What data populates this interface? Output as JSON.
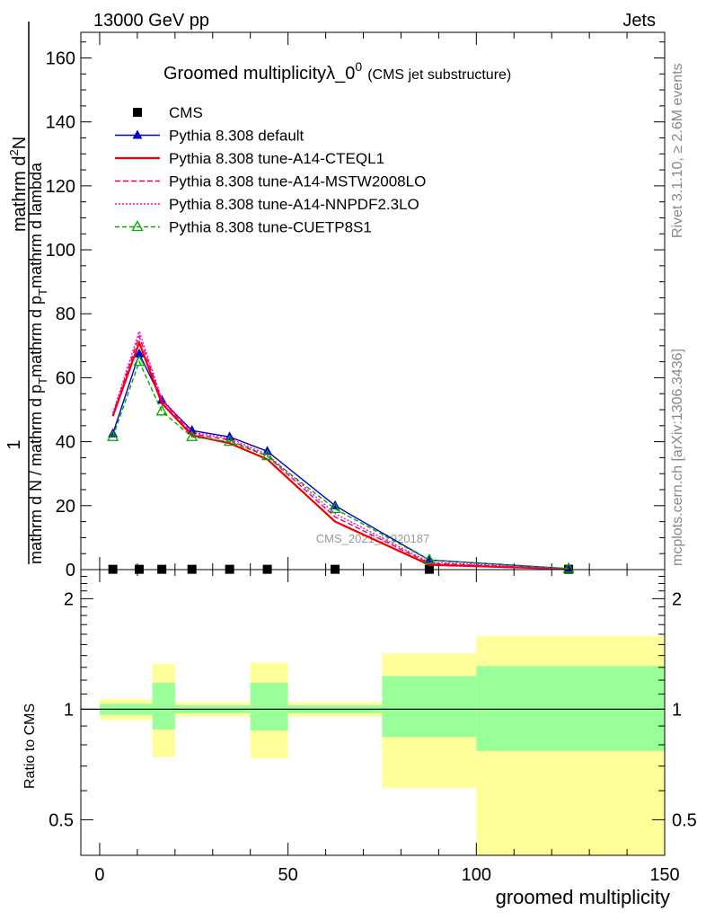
{
  "header": {
    "left": "13000 GeV pp",
    "right": "Jets"
  },
  "side": {
    "rivet": "Rivet 3.1.10, ≥ 2.6M events",
    "mcplots": "mcplots.cern.ch [arXiv:1306.3436]"
  },
  "watermark": "CMS_2021_I1920187",
  "chart_data": [
    {
      "type": "line",
      "title": "Groomed multiplicityλ_0",
      "title_sup": "0",
      "title_suffix": "(CMS jet substructure)",
      "ylabel_num": "mathrm d²N",
      "ylabel_frac_prefix": "1",
      "ylabel_den": "mathrm d N / mathrm d p_T mathrm d p_T mathrm d lambda",
      "ylabel_parts": {
        "one": "1",
        "num": "mathrm d",
        "num_sup": "2",
        "num_end": "N",
        "den_a": "mathrm d N / mathrm d p",
        "den_sub1": "T",
        "den_b": "mathrm d p",
        "den_sub2": "T",
        "den_c": "mathrm d lambda",
        "top_line": "mathrm d lambda"
      },
      "ylim": [
        0,
        168
      ],
      "xlim": [
        -5,
        150
      ],
      "yticks": [
        0,
        20,
        40,
        60,
        80,
        100,
        120,
        140,
        160
      ],
      "ytick_labels": [
        "0",
        "20",
        "40",
        "60",
        "80",
        "100",
        "120",
        "140",
        "160"
      ],
      "legend_position": "top-left",
      "series": [
        {
          "name": "CMS",
          "color": "#000000",
          "marker": "square",
          "x": [
            3.5,
            10.5,
            16.5,
            24.5,
            34.5,
            44.5,
            62.5,
            87.5,
            124.5
          ],
          "y": [
            0.1,
            0.1,
            0.1,
            0.1,
            0.1,
            0.1,
            0.1,
            0.1,
            0.1
          ]
        },
        {
          "name": "Pythia 8.308 default",
          "color": "#0000cc",
          "dash": "",
          "marker": "filled-triangle",
          "x": [
            3.5,
            10.5,
            16.5,
            24.5,
            34.5,
            44.5,
            62.5,
            87.5,
            124.5
          ],
          "y": [
            42.5,
            67.5,
            53,
            43.5,
            41.5,
            37,
            20,
            3,
            0.3
          ]
        },
        {
          "name": "Pythia 8.308 tune-A14-CTEQL1",
          "color": "#ee0000",
          "dash": "",
          "marker": "none",
          "x": [
            3.5,
            10.5,
            16.5,
            24.5,
            34.5,
            44.5,
            62.5,
            87.5,
            124.5
          ],
          "y": [
            48,
            71,
            52,
            42,
            39.5,
            34.5,
            15,
            1.5,
            0.2
          ]
        },
        {
          "name": "Pythia 8.308 tune-A14-MSTW2008LO",
          "color": "#ee0066",
          "dash": "6,3",
          "marker": "none",
          "x": [
            3.5,
            10.5,
            16.5,
            24.5,
            34.5,
            44.5,
            62.5,
            87.5,
            124.5
          ],
          "y": [
            48.5,
            73,
            53,
            42.5,
            40.5,
            35.5,
            16.5,
            2,
            0.2
          ]
        },
        {
          "name": "Pythia 8.308 tune-A14-NNPDF2.3LO",
          "color": "#ff00cc",
          "dash": "2,2",
          "marker": "none",
          "x": [
            3.5,
            10.5,
            16.5,
            24.5,
            34.5,
            44.5,
            62.5,
            87.5,
            124.5
          ],
          "y": [
            49,
            74.5,
            53.5,
            43,
            41,
            36,
            17.5,
            2.3,
            0.2
          ]
        },
        {
          "name": "Pythia 8.308 tune-CUETP8S1",
          "color": "#00aa00",
          "dash": "5,3",
          "marker": "open-triangle",
          "x": [
            3.5,
            10.5,
            16.5,
            24.5,
            34.5,
            44.5,
            62.5,
            87.5,
            124.5
          ],
          "y": [
            41.5,
            65,
            49.5,
            41.5,
            40,
            35.5,
            19,
            3,
            0.3
          ]
        }
      ]
    },
    {
      "type": "area",
      "ylabel": "Ratio to CMS",
      "xlabel": "groomed multiplicity",
      "scale": "log",
      "ylim": [
        0.4,
        2.4
      ],
      "xlim": [
        -5,
        150
      ],
      "xticks": [
        0,
        50,
        100,
        150
      ],
      "xtick_labels": [
        "0",
        "50",
        "100",
        "150"
      ],
      "yticks": [
        0.5,
        1,
        2
      ],
      "ytick_labels": [
        "0.5",
        "1",
        "2"
      ],
      "reference_line": 1,
      "stat_color": "#99ff99",
      "syst_color": "#ffff99",
      "bins": [
        {
          "x0": 0,
          "x1": 14,
          "stat_lo": 0.965,
          "stat_hi": 1.035,
          "tot_lo": 0.935,
          "tot_hi": 1.065
        },
        {
          "x0": 14,
          "x1": 20,
          "stat_lo": 0.88,
          "stat_hi": 1.18,
          "tot_lo": 0.74,
          "tot_hi": 1.33
        },
        {
          "x0": 20,
          "x1": 40,
          "stat_lo": 0.975,
          "stat_hi": 1.025,
          "tot_lo": 0.955,
          "tot_hi": 1.045
        },
        {
          "x0": 40,
          "x1": 50,
          "stat_lo": 0.875,
          "stat_hi": 1.18,
          "tot_lo": 0.735,
          "tot_hi": 1.34
        },
        {
          "x0": 50,
          "x1": 75,
          "stat_lo": 0.975,
          "stat_hi": 1.025,
          "tot_lo": 0.955,
          "tot_hi": 1.045
        },
        {
          "x0": 75,
          "x1": 100,
          "stat_lo": 0.84,
          "stat_hi": 1.23,
          "tot_lo": 0.61,
          "tot_hi": 1.42
        },
        {
          "x0": 100,
          "x1": 150,
          "stat_lo": 0.77,
          "stat_hi": 1.31,
          "tot_lo": 0.4,
          "tot_hi": 1.58
        }
      ]
    }
  ]
}
